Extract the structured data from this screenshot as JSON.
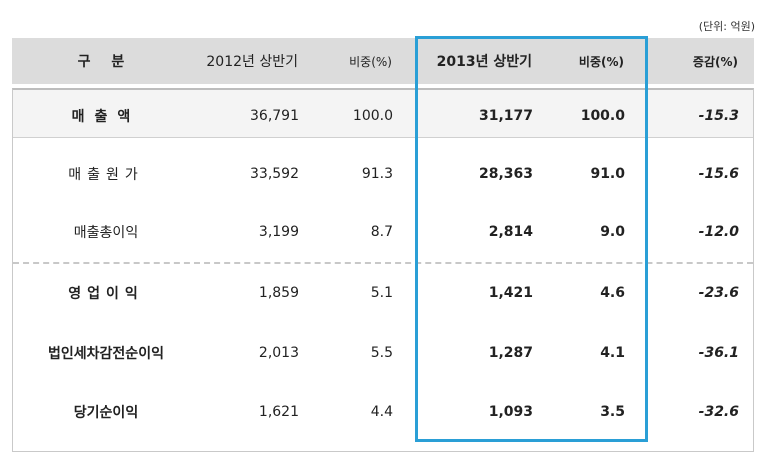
{
  "unit_note": "(단위: 억원)",
  "header": {
    "label": "구 분",
    "col_2012": "2012년 상반기",
    "col_ratio_2012": "비중(%)",
    "col_2013": "2013년 상반기",
    "col_ratio_2013": "비중(%)",
    "col_change": "증감(%)"
  },
  "rows": [
    {
      "label": "매출액",
      "v2012": "36,791",
      "r2012": "100.0",
      "v2013": "31,177",
      "r2013": "100.0",
      "change": "-15.3"
    },
    {
      "label": "매출원가",
      "v2012": "33,592",
      "r2012": "91.3",
      "v2013": "28,363",
      "r2013": "91.0",
      "change": "-15.6"
    },
    {
      "label": "매출총이익",
      "v2012": "3,199",
      "r2012": "8.7",
      "v2013": "2,814",
      "r2013": "9.0",
      "change": "-12.0"
    },
    {
      "label": "영업이익",
      "v2012": "1,859",
      "r2012": "5.1",
      "v2013": "1,421",
      "r2013": "4.6",
      "change": "-23.6"
    },
    {
      "label": "법인세차감전순이익",
      "v2012": "2,013",
      "r2012": "5.5",
      "v2013": "1,287",
      "r2013": "4.1",
      "change": "-36.1"
    },
    {
      "label": "당기순이익",
      "v2012": "1,621",
      "r2012": "4.4",
      "v2013": "1,093",
      "r2013": "3.5",
      "change": "-32.6"
    }
  ],
  "colors": {
    "header_bg": "#dcdcdc",
    "highlight": "#2a9fd6"
  }
}
